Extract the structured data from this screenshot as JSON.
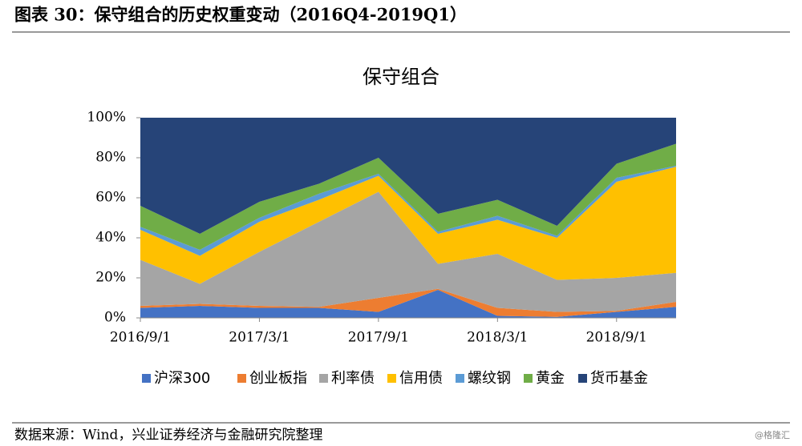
{
  "header": {
    "title": "图表 30：保守组合的历史权重变动（2016Q4-2019Q1）"
  },
  "chart_data": {
    "type": "stacked_area",
    "title": "保守组合",
    "categories": [
      "2016/9/1",
      null,
      "2017/3/1",
      null,
      "2017/9/1",
      null,
      "2018/3/1",
      null,
      "2018/9/1",
      null
    ],
    "series": [
      {
        "name": "沪深300",
        "color": "#4472c4",
        "values": [
          5,
          6,
          5,
          5,
          3,
          14,
          1,
          0.5,
          3,
          5.5
        ]
      },
      {
        "name": "创业板指",
        "color": "#ed7d31",
        "values": [
          1,
          1,
          1,
          0.5,
          7,
          0.5,
          4,
          2.5,
          0.5,
          2.5
        ]
      },
      {
        "name": "利率债",
        "color": "#a5a5a5",
        "values": [
          23,
          10,
          27,
          42.5,
          53,
          12.5,
          27,
          16,
          16.5,
          14.5
        ]
      },
      {
        "name": "信用债",
        "color": "#ffc000",
        "values": [
          15,
          14,
          15,
          11,
          8,
          15,
          17,
          21,
          48,
          53
        ]
      },
      {
        "name": "螺纹钢",
        "color": "#5b9bd5",
        "values": [
          1.5,
          3,
          2,
          3,
          1,
          1,
          2,
          1,
          2,
          0.5
        ]
      },
      {
        "name": "黄金",
        "color": "#70ad47",
        "values": [
          10.5,
          8,
          8,
          5,
          8,
          9,
          8,
          5,
          7,
          11
        ]
      },
      {
        "name": "货币基金",
        "color": "#264478",
        "values": [
          44,
          58,
          42,
          33,
          20,
          48,
          41,
          54,
          23,
          13
        ]
      }
    ],
    "ylim": [
      0,
      100
    ],
    "yticks": [
      {
        "value": 0,
        "label": "0%"
      },
      {
        "value": 20,
        "label": "20%"
      },
      {
        "value": 40,
        "label": "40%"
      },
      {
        "value": 60,
        "label": "60%"
      },
      {
        "value": 80,
        "label": "80%"
      },
      {
        "value": 100,
        "label": "100%"
      }
    ],
    "legend": "bottom"
  },
  "footer": {
    "source": "数据来源：Wind，兴业证券经济与金融研究院整理",
    "watermark": "@格隆汇"
  }
}
